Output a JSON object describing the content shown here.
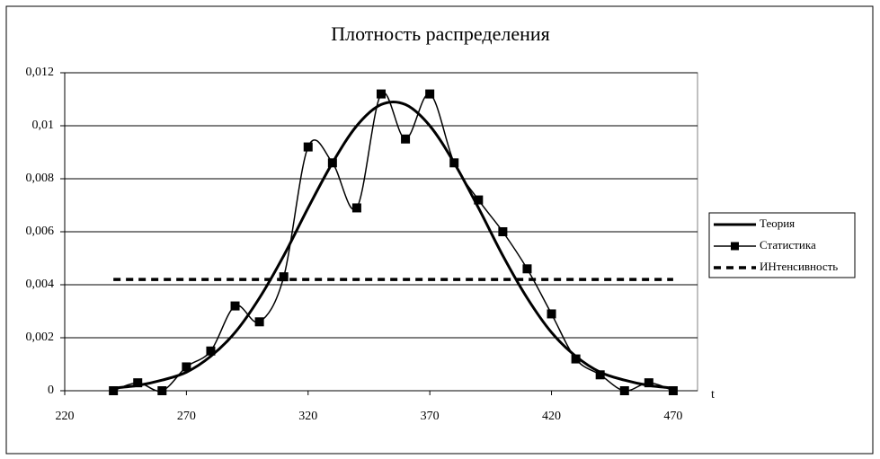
{
  "chart_data": {
    "type": "line",
    "title": "Плотность распределения",
    "x_label": "t",
    "x": [
      240,
      250,
      260,
      270,
      280,
      290,
      300,
      310,
      320,
      330,
      340,
      350,
      360,
      370,
      380,
      390,
      400,
      410,
      420,
      430,
      440,
      450,
      460,
      470
    ],
    "series": [
      {
        "name": "Теория",
        "color": "#000000",
        "line_style": "solid",
        "marker": "none",
        "values": [
          0.0001,
          0.0002,
          0.0004,
          0.0007,
          0.0013,
          0.0022,
          0.0035,
          0.0051,
          0.0069,
          0.0086,
          0.01,
          0.0108,
          0.0108,
          0.01,
          0.0086,
          0.0069,
          0.0051,
          0.0035,
          0.0022,
          0.0013,
          0.0007,
          0.0004,
          0.0002,
          0.0001
        ]
      },
      {
        "name": "Статистика",
        "color": "#000000",
        "line_style": "solid",
        "marker": "square",
        "values": [
          0,
          0.0003,
          0,
          0.0009,
          0.0015,
          0.0032,
          0.0026,
          0.0043,
          0.0092,
          0.0086,
          0.0069,
          0.0112,
          0.0095,
          0.0112,
          0.0086,
          0.0072,
          0.006,
          0.0046,
          0.0029,
          0.0012,
          0.0006,
          0,
          0.0003,
          0
        ]
      },
      {
        "name": "ИНтенсивность",
        "color": "#000000",
        "line_style": "dashed",
        "marker": "none",
        "values": [
          0.0042,
          0.0042,
          0.0042,
          0.0042,
          0.0042,
          0.0042,
          0.0042,
          0.0042,
          0.0042,
          0.0042,
          0.0042,
          0.0042,
          0.0042,
          0.0042,
          0.0042,
          0.0042,
          0.0042,
          0.0042,
          0.0042,
          0.0042,
          0.0042,
          0.0042,
          0.0042,
          0.0042
        ]
      }
    ],
    "xlim": [
      220,
      480
    ],
    "xticks": [
      220,
      270,
      320,
      370,
      420,
      470
    ],
    "ylim": [
      0,
      0.012
    ],
    "yticks": [
      0,
      {
        "value": 0.002,
        "label": "0,002"
      },
      {
        "value": 0.004,
        "label": "0,004"
      },
      {
        "value": 0.006,
        "label": "0,006"
      },
      {
        "value": 0.008,
        "label": "0,008"
      },
      {
        "value": 0.01,
        "label": "0,01"
      },
      {
        "value": 0.012,
        "label": "0,012"
      }
    ],
    "grid": true,
    "smooth": true,
    "legend": "right"
  }
}
